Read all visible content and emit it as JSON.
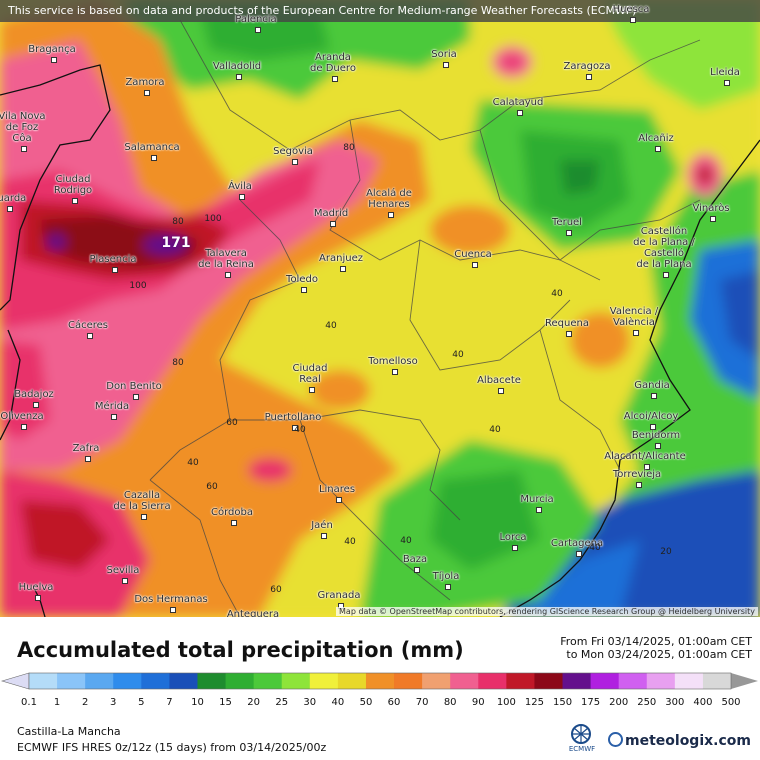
{
  "banner": "This service is based on data and products of the European Centre for Medium-range Weather Forecasts (ECMWF)",
  "map_credit": "Map data © OpenStreetMap contributors, rendering GIScience Research Group @ Heidelberg University",
  "cities": [
    {
      "name": "Palencia"
    },
    {
      "name": "Huesca"
    },
    {
      "name": "Bragança"
    },
    {
      "name": "Zamora"
    },
    {
      "name": "Valladolid"
    },
    {
      "name": "Aranda\nde Duero"
    },
    {
      "name": "Soria"
    },
    {
      "name": "Zaragoza"
    },
    {
      "name": "Lleida"
    },
    {
      "name": "Calatayud"
    },
    {
      "name": "Vila Nova\nde Foz\nCôa"
    },
    {
      "name": "Salamanca"
    },
    {
      "name": "Segovia"
    },
    {
      "name": "Alcañiz"
    },
    {
      "name": "Ciudad\nRodrigo"
    },
    {
      "name": "Ávila"
    },
    {
      "name": "Guarda"
    },
    {
      "name": "Alcalá de\nHenares"
    },
    {
      "name": "Madrid"
    },
    {
      "name": "Vinaròs"
    },
    {
      "name": "Teruel"
    },
    {
      "name": "Castellón\nde la Plana /\nCastelló\nde la Plana"
    },
    {
      "name": "Plasencia"
    },
    {
      "name": "Talavera\nde la Reina"
    },
    {
      "name": "Aranjuez"
    },
    {
      "name": "Cuenca"
    },
    {
      "name": "Toledo"
    },
    {
      "name": "Cáceres"
    },
    {
      "name": "Requena"
    },
    {
      "name": "Valencia /\nValència"
    },
    {
      "name": "Tomelloso"
    },
    {
      "name": "Ciudad\nReal"
    },
    {
      "name": "Don Benito"
    },
    {
      "name": "Albacete"
    },
    {
      "name": "Badajoz"
    },
    {
      "name": "Gandia"
    },
    {
      "name": "Mérida"
    },
    {
      "name": "Olivenza"
    },
    {
      "name": "Puertollano"
    },
    {
      "name": "Alcoi/Alcoy"
    },
    {
      "name": "Benidorm"
    },
    {
      "name": "Zafra"
    },
    {
      "name": "Alacant/Alicante"
    },
    {
      "name": "Linares"
    },
    {
      "name": "Torrevieja"
    },
    {
      "name": "Murcia"
    },
    {
      "name": "Cazalla\nde la Sierra"
    },
    {
      "name": "Córdoba"
    },
    {
      "name": "Jaén"
    },
    {
      "name": "Lorca"
    },
    {
      "name": "Cartagena"
    },
    {
      "name": "Baza"
    },
    {
      "name": "Sevilla"
    },
    {
      "name": "Tíjola"
    },
    {
      "name": "Huelva"
    },
    {
      "name": "Dos Hermanas"
    },
    {
      "name": "Granada"
    },
    {
      "name": "Antequera"
    }
  ],
  "contour_labels": [
    "80",
    "100",
    "80",
    "100",
    "80",
    "60",
    "40",
    "40",
    "40",
    "40",
    "40",
    "60",
    "40",
    "60",
    "40",
    "20",
    "40",
    "40"
  ],
  "max_value": "171",
  "legend": {
    "title": "Accumulated total precipitation (mm)",
    "from": "From Fri 03/14/2025, 01:00am CET",
    "to": "to Mon 03/24/2025, 01:00am CET",
    "ticks": [
      "0.1",
      "1",
      "2",
      "3",
      "5",
      "7",
      "10",
      "15",
      "20",
      "25",
      "30",
      "40",
      "50",
      "60",
      "70",
      "80",
      "90",
      "100",
      "125",
      "150",
      "175",
      "200",
      "250",
      "300",
      "400",
      "500"
    ],
    "colors": [
      "#dcdcf4",
      "#b4dcf8",
      "#8ac4f8",
      "#5aa8f0",
      "#2f8cec",
      "#1f6fd8",
      "#1a4fb8",
      "#1e8c2e",
      "#2fae32",
      "#4cc93a",
      "#8ee43a",
      "#f0f03a",
      "#e8d82a",
      "#f09028",
      "#f07a28",
      "#f0a070",
      "#f06090",
      "#e8306a",
      "#c01828",
      "#8c0818",
      "#64108c",
      "#b020e0",
      "#d060f0",
      "#e8a0f0",
      "#f4e0f8",
      "#d8d8d8",
      "#989898"
    ]
  },
  "region": "Castilla-La Mancha",
  "model": "ECMWF IFS HRES 0z/12z (15 days) from 03/14/2025/00z",
  "logo_ecmwf": "ECMWF",
  "logo_meteologix": "meteologix.com"
}
